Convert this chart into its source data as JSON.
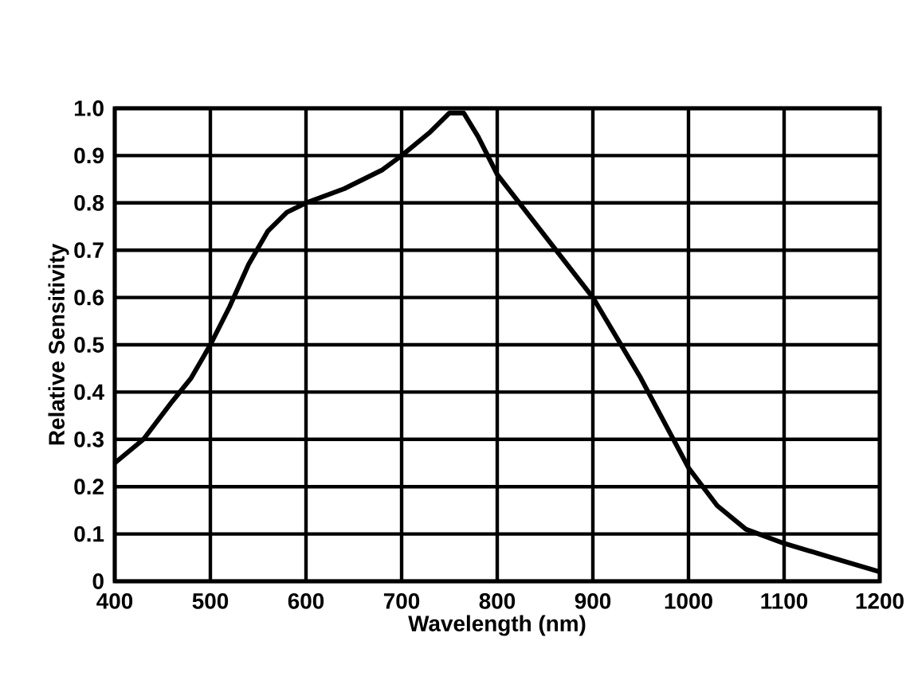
{
  "chart_data": {
    "type": "line",
    "xlabel": "Wavelength (nm)",
    "ylabel": "Relative Sensitivity",
    "x": [
      400,
      430,
      460,
      480,
      500,
      520,
      540,
      560,
      580,
      600,
      640,
      680,
      700,
      730,
      750,
      765,
      780,
      800,
      850,
      900,
      950,
      1000,
      1030,
      1060,
      1100,
      1150,
      1200
    ],
    "values": [
      0.25,
      0.3,
      0.38,
      0.43,
      0.5,
      0.58,
      0.67,
      0.74,
      0.78,
      0.8,
      0.83,
      0.87,
      0.9,
      0.95,
      0.99,
      0.99,
      0.94,
      0.86,
      0.73,
      0.6,
      0.43,
      0.24,
      0.16,
      0.11,
      0.08,
      0.05,
      0.02
    ],
    "color": "#000000",
    "xlim": [
      400,
      1200
    ],
    "ylim": [
      0,
      1
    ],
    "xticks": [
      400,
      500,
      600,
      700,
      800,
      900,
      1000,
      1100,
      1200
    ],
    "yticks": [
      0,
      {
        "value": 0.1,
        "label": "0.1"
      },
      {
        "value": 0.2,
        "label": "0.2"
      },
      {
        "value": 0.3,
        "label": "0.3"
      },
      {
        "value": 0.4,
        "label": "0.4"
      },
      {
        "value": 0.5,
        "label": "0.5"
      },
      {
        "value": 0.6,
        "label": "0.6"
      },
      {
        "value": 0.7,
        "label": "0.7"
      },
      {
        "value": 0.8,
        "label": "0.8"
      },
      {
        "value": 0.9,
        "label": "0.9"
      },
      {
        "value": 1,
        "label": "1.0"
      }
    ],
    "grid": true,
    "marker": "none",
    "line_style": "solid"
  }
}
